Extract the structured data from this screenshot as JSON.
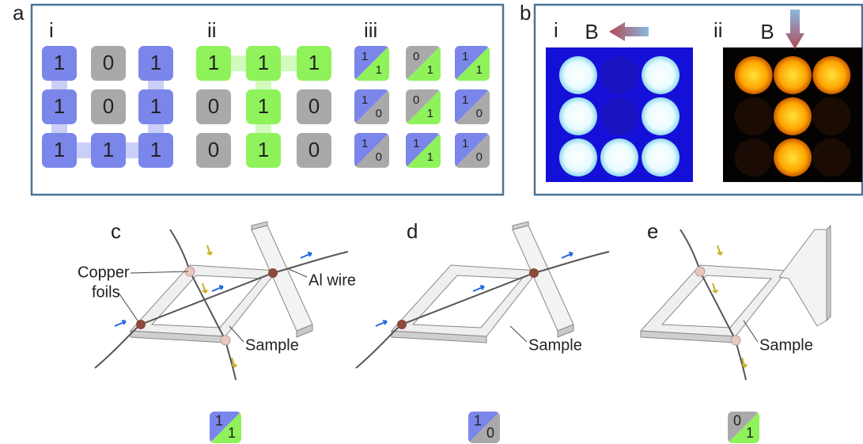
{
  "panel_a": {
    "label": "a",
    "subpanels": [
      {
        "label": "i",
        "grid": [
          [
            "1",
            "0",
            "1"
          ],
          [
            "1",
            "0",
            "1"
          ],
          [
            "1",
            "1",
            "1"
          ]
        ]
      },
      {
        "label": "ii",
        "grid": [
          [
            "1",
            "1",
            "1"
          ],
          [
            "0",
            "1",
            "0"
          ],
          [
            "0",
            "1",
            "0"
          ]
        ]
      },
      {
        "label": "iii",
        "grid": [
          [
            [
              "1",
              "1"
            ],
            [
              "0",
              "1"
            ],
            [
              "1",
              "1"
            ]
          ],
          [
            [
              "1",
              "0"
            ],
            [
              "0",
              "1"
            ],
            [
              "1",
              "0"
            ]
          ],
          [
            [
              "1",
              "0"
            ],
            [
              "1",
              "1"
            ],
            [
              "1",
              "0"
            ]
          ]
        ]
      }
    ]
  },
  "panel_b": {
    "label": "b",
    "subpanels": [
      {
        "label": "i",
        "field": "B"
      },
      {
        "label": "ii",
        "field": "B"
      }
    ]
  },
  "panel_c": {
    "label": "c",
    "annotations": [
      "Copper",
      "foils",
      "Al wire",
      "Sample"
    ],
    "badge": [
      "1",
      "1"
    ]
  },
  "panel_d": {
    "label": "d",
    "annotations": [
      "Sample"
    ],
    "badge": [
      "1",
      "0"
    ]
  },
  "panel_e": {
    "label": "e",
    "annotations": [
      "Sample"
    ],
    "badge": [
      "0",
      "1"
    ]
  }
}
